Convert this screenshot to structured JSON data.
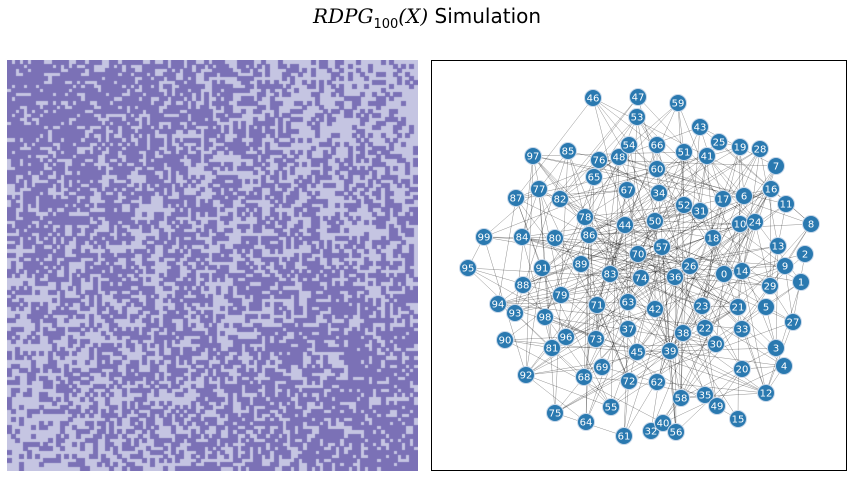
{
  "figure": {
    "title_prefix": "RDPG",
    "title_subscript": "100",
    "title_arg": "(X)",
    "title_suffix": "Simulation"
  },
  "colors": {
    "adjacency_on": "#7b71b6",
    "adjacency_off": "#c5c5e2",
    "node_fill": "#2a79b0",
    "node_stroke": "#c8d8ea",
    "node_label": "#ffffff",
    "edge": "#000000"
  },
  "adjacency_matrix": {
    "size": 100,
    "description_of_pattern": "dense top-left and bottom-right blocks, sparse off-diagonal blocks"
  },
  "graph": {
    "nodes": [
      "0",
      "1",
      "2",
      "3",
      "4",
      "5",
      "6",
      "7",
      "8",
      "9",
      "10",
      "11",
      "12",
      "13",
      "14",
      "15",
      "16",
      "17",
      "18",
      "19",
      "20",
      "21",
      "22",
      "23",
      "24",
      "25",
      "26",
      "27",
      "28",
      "29",
      "30",
      "31",
      "32",
      "33",
      "34",
      "35",
      "36",
      "37",
      "38",
      "39",
      "40",
      "41",
      "42",
      "43",
      "44",
      "45",
      "46",
      "47",
      "48",
      "49",
      "50",
      "51",
      "52",
      "53",
      "54",
      "55",
      "56",
      "57",
      "58",
      "59",
      "60",
      "61",
      "62",
      "63",
      "64",
      "65",
      "66",
      "67",
      "68",
      "69",
      "70",
      "71",
      "72",
      "73",
      "74",
      "75",
      "76",
      "77",
      "78",
      "79",
      "80",
      "81",
      "82",
      "83",
      "84",
      "85",
      "86",
      "87",
      "88",
      "89",
      "90",
      "91",
      "92",
      "93",
      "94",
      "95",
      "96",
      "97",
      "98",
      "99"
    ]
  }
}
